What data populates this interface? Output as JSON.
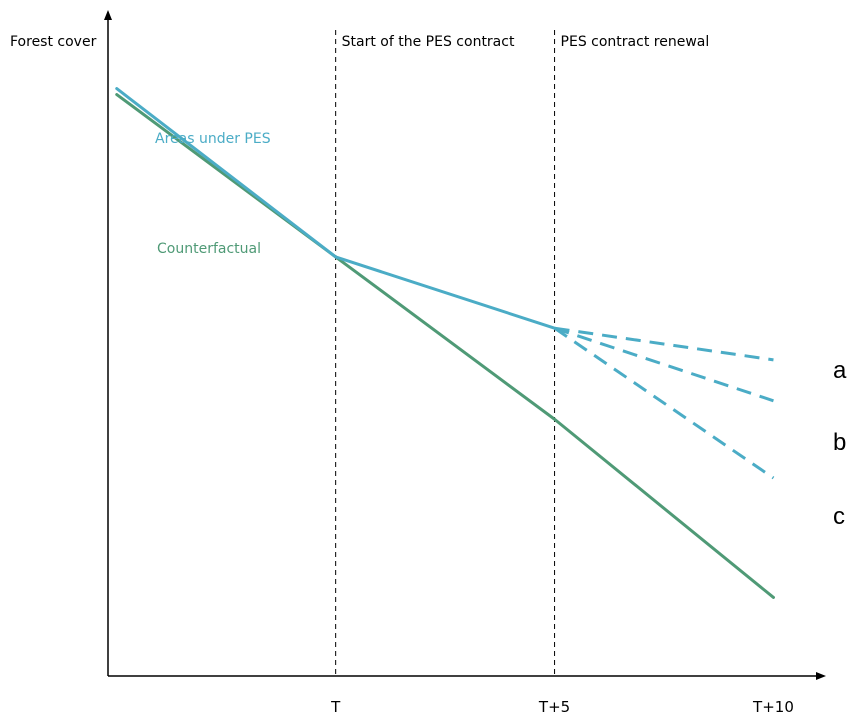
{
  "chart_data": {
    "type": "line",
    "ylabel": "Forest cover",
    "x_ticks": [
      "T",
      "T+5",
      "T+10"
    ],
    "x": [
      -5,
      0,
      5,
      10
    ],
    "ylim": [
      0,
      100
    ],
    "xlim": [
      -5.2,
      11.2
    ],
    "events": [
      {
        "x": 0,
        "label": "Start of the PES contract"
      },
      {
        "x": 5,
        "label": "PES contract renewal"
      }
    ],
    "series": [
      {
        "name": "Areas under PES",
        "color": "#4bacc6",
        "style": "solid",
        "points": [
          [
            -5,
            89.0
          ],
          [
            0,
            63.5
          ],
          [
            5,
            52.7
          ]
        ]
      },
      {
        "name": "Counterfactual",
        "color": "#4f9a76",
        "style": "solid",
        "points": [
          [
            -5,
            88.1
          ],
          [
            0,
            63.5
          ],
          [
            5,
            38.9
          ],
          [
            10,
            11.9
          ]
        ]
      }
    ],
    "scenarios": [
      {
        "label": "a",
        "color": "#4bacc6",
        "points": [
          [
            5,
            52.7
          ],
          [
            10,
            47.9
          ]
        ]
      },
      {
        "label": "b",
        "color": "#4bacc6",
        "points": [
          [
            5,
            52.7
          ],
          [
            10,
            41.7
          ]
        ]
      },
      {
        "label": "c",
        "color": "#4bacc6",
        "points": [
          [
            5,
            52.7
          ],
          [
            10,
            30.0
          ]
        ]
      }
    ]
  }
}
